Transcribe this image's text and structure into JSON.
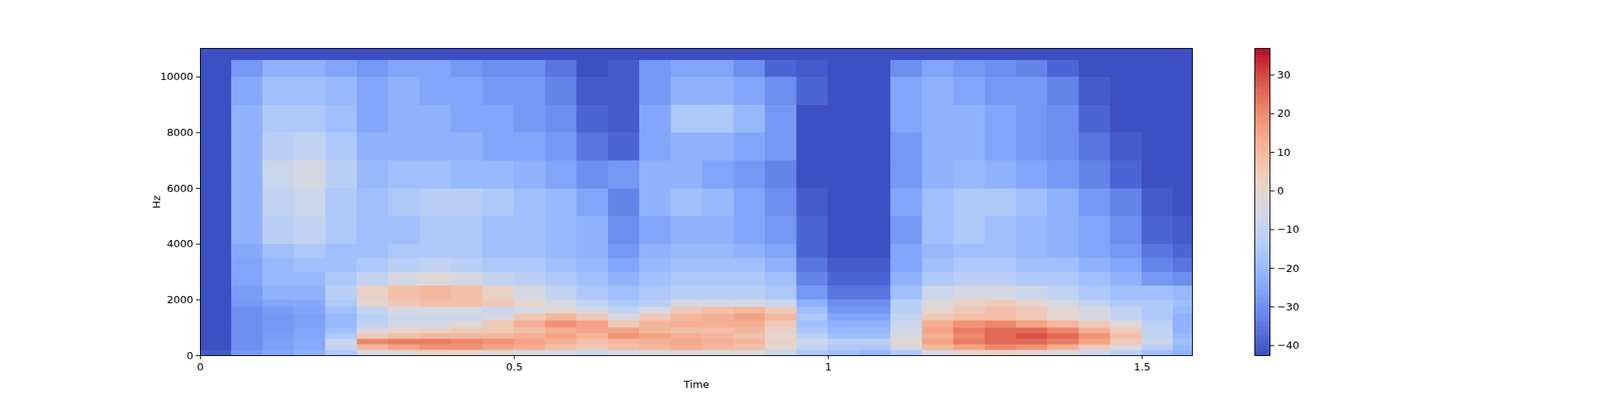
{
  "chart_data": {
    "type": "heatmap",
    "x_label": "Time",
    "y_label": "Hz",
    "xlim": [
      0,
      1.58
    ],
    "ylim": [
      0,
      11025
    ],
    "xticks": [
      0,
      0.5,
      1,
      1.5
    ],
    "yticks": [
      0,
      2000,
      4000,
      6000,
      8000,
      10000
    ],
    "color": "coolwarm",
    "colorbar": {
      "range": [
        -42.6,
        36.9
      ],
      "ticks": [
        {
          "value": -40,
          "label": "−40"
        },
        {
          "value": -30,
          "label": "−30"
        },
        {
          "value": -20,
          "label": "−20"
        },
        {
          "value": -10,
          "label": "−10"
        },
        0,
        10,
        20,
        30
      ]
    },
    "time_bins": [
      0,
      0.05,
      0.1,
      0.15,
      0.2,
      0.25,
      0.3,
      0.35,
      0.4,
      0.45,
      0.5,
      0.55,
      0.6,
      0.65,
      0.7,
      0.75,
      0.8,
      0.85,
      0.9,
      0.95,
      1.0,
      1.05,
      1.1,
      1.15,
      1.2,
      1.25,
      1.3,
      1.35,
      1.4,
      1.45,
      1.5,
      1.55,
      1.58
    ],
    "freq_bins": [
      0,
      200,
      400,
      600,
      800,
      1000,
      1250,
      1500,
      1750,
      2000,
      2500,
      3000,
      3500,
      4000,
      5000,
      6000,
      7000,
      8000,
      9000,
      10000,
      10600,
      11025
    ],
    "values": [
      [
        -40,
        -28,
        -25,
        -22,
        -15,
        -5,
        -2,
        0,
        0,
        -2,
        -3,
        -5,
        -8,
        -5,
        -3,
        -2,
        -2,
        -4,
        -8,
        -15,
        -18,
        -20,
        -15,
        -5,
        0,
        2,
        0,
        -3,
        -8,
        -12,
        -18,
        -22
      ],
      [
        -42,
        -30,
        -26,
        -24,
        -10,
        10,
        15,
        18,
        18,
        15,
        12,
        8,
        5,
        8,
        10,
        12,
        10,
        8,
        0,
        -10,
        -15,
        -15,
        -5,
        10,
        15,
        20,
        18,
        12,
        5,
        -2,
        -12,
        -20
      ],
      [
        -42,
        -30,
        -26,
        -24,
        -8,
        20,
        22,
        22,
        20,
        18,
        15,
        12,
        8,
        10,
        12,
        14,
        12,
        10,
        2,
        -8,
        -12,
        -12,
        0,
        15,
        22,
        25,
        25,
        22,
        15,
        5,
        -8,
        -18
      ],
      [
        -42,
        -30,
        -27,
        -25,
        -15,
        5,
        8,
        10,
        10,
        10,
        12,
        15,
        10,
        18,
        15,
        12,
        10,
        8,
        0,
        -12,
        -18,
        -18,
        -5,
        12,
        20,
        25,
        28,
        25,
        18,
        8,
        -10,
        -20
      ],
      [
        -42,
        -30,
        -28,
        -25,
        -18,
        -5,
        0,
        2,
        5,
        5,
        8,
        12,
        15,
        15,
        10,
        8,
        8,
        10,
        2,
        -15,
        -20,
        -20,
        -5,
        15,
        22,
        25,
        25,
        20,
        12,
        5,
        -10,
        -22
      ],
      [
        -42,
        -30,
        -28,
        -26,
        -20,
        -10,
        -5,
        -5,
        -2,
        5,
        12,
        18,
        15,
        5,
        10,
        12,
        12,
        12,
        5,
        -18,
        -22,
        -22,
        -8,
        12,
        18,
        20,
        15,
        10,
        5,
        -2,
        -12,
        -22
      ],
      [
        -42,
        -30,
        -28,
        -26,
        -20,
        -12,
        -8,
        -8,
        -8,
        -5,
        5,
        10,
        5,
        -5,
        5,
        10,
        12,
        15,
        10,
        -15,
        -25,
        -25,
        -10,
        5,
        8,
        8,
        5,
        0,
        -5,
        -10,
        -15,
        -22
      ],
      [
        -42,
        -30,
        -27,
        -25,
        -18,
        -10,
        -5,
        -5,
        -5,
        -8,
        -5,
        0,
        -5,
        -10,
        -5,
        5,
        8,
        10,
        5,
        -18,
        -28,
        -28,
        -12,
        0,
        5,
        8,
        5,
        0,
        -5,
        -10,
        -15,
        -20
      ],
      [
        -42,
        -28,
        -25,
        -24,
        -15,
        0,
        5,
        8,
        8,
        5,
        0,
        -5,
        -10,
        -15,
        -12,
        -5,
        -5,
        -5,
        -8,
        -22,
        -30,
        -30,
        -12,
        -2,
        2,
        5,
        0,
        -5,
        -10,
        -15,
        -15,
        -18
      ],
      [
        -42,
        -27,
        -22,
        -22,
        -12,
        2,
        8,
        10,
        8,
        2,
        -5,
        -10,
        -15,
        -18,
        -15,
        -12,
        -12,
        -12,
        -15,
        -28,
        -35,
        -35,
        -18,
        -8,
        -5,
        -5,
        -8,
        -10,
        -15,
        -18,
        -18,
        -20
      ],
      [
        -42,
        -25,
        -20,
        -20,
        -15,
        -10,
        -5,
        -2,
        -5,
        -10,
        -12,
        -15,
        -18,
        -22,
        -18,
        -15,
        -15,
        -15,
        -18,
        -32,
        -38,
        -38,
        -22,
        -15,
        -12,
        -12,
        -15,
        -15,
        -18,
        -22,
        -28,
        -30
      ],
      [
        -42,
        -25,
        -20,
        -18,
        -18,
        -15,
        -12,
        -10,
        -12,
        -15,
        -15,
        -18,
        -20,
        -25,
        -20,
        -18,
        -18,
        -18,
        -22,
        -35,
        -40,
        -40,
        -25,
        -18,
        -15,
        -15,
        -18,
        -18,
        -22,
        -25,
        -32,
        -35
      ],
      [
        -42,
        -24,
        -18,
        -15,
        -18,
        -18,
        -15,
        -15,
        -15,
        -18,
        -18,
        -20,
        -22,
        -28,
        -22,
        -20,
        -20,
        -22,
        -25,
        -38,
        -42,
        -42,
        -25,
        -20,
        -18,
        -18,
        -20,
        -22,
        -25,
        -28,
        -35,
        -38
      ],
      [
        -42,
        -22,
        -12,
        -10,
        -15,
        -18,
        -18,
        -15,
        -15,
        -18,
        -18,
        -20,
        -22,
        -30,
        -25,
        -22,
        -22,
        -25,
        -28,
        -38,
        -42,
        -42,
        -28,
        -18,
        -15,
        -18,
        -20,
        -22,
        -25,
        -30,
        -38,
        -40
      ],
      [
        -42,
        -22,
        -10,
        -8,
        -15,
        -18,
        -15,
        -12,
        -12,
        -15,
        -18,
        -20,
        -25,
        -32,
        -22,
        -18,
        -20,
        -25,
        -30,
        -40,
        -42,
        -42,
        -25,
        -18,
        -15,
        -15,
        -18,
        -22,
        -28,
        -32,
        -40,
        -42
      ],
      [
        -42,
        -22,
        -8,
        -5,
        -12,
        -20,
        -18,
        -18,
        -20,
        -20,
        -22,
        -25,
        -30,
        -28,
        -22,
        -22,
        -25,
        -28,
        -32,
        -42,
        -42,
        -42,
        -28,
        -22,
        -20,
        -22,
        -25,
        -28,
        -32,
        -38,
        -42,
        -42
      ],
      [
        -42,
        -22,
        -12,
        -10,
        -15,
        -22,
        -22,
        -22,
        -22,
        -25,
        -25,
        -28,
        -35,
        -38,
        -25,
        -22,
        -22,
        -25,
        -28,
        -42,
        -42,
        -42,
        -28,
        -22,
        -22,
        -25,
        -28,
        -30,
        -35,
        -40,
        -42,
        -42
      ],
      [
        -42,
        -22,
        -15,
        -15,
        -18,
        -25,
        -22,
        -22,
        -25,
        -25,
        -28,
        -30,
        -38,
        -40,
        -25,
        -15,
        -15,
        -20,
        -28,
        -42,
        -42,
        -42,
        -25,
        -22,
        -22,
        -25,
        -28,
        -30,
        -38,
        -42,
        -42,
        -42
      ],
      [
        -42,
        -24,
        -18,
        -18,
        -20,
        -25,
        -22,
        -25,
        -25,
        -28,
        -28,
        -32,
        -40,
        -40,
        -28,
        -22,
        -22,
        -25,
        -30,
        -38,
        -42,
        -42,
        -25,
        -22,
        -25,
        -28,
        -28,
        -32,
        -40,
        -42,
        -42,
        -42
      ],
      [
        -42,
        -28,
        -22,
        -22,
        -25,
        -28,
        -25,
        -25,
        -28,
        -30,
        -30,
        -35,
        -42,
        -40,
        -28,
        -25,
        -25,
        -30,
        -38,
        -40,
        -42,
        -42,
        -30,
        -25,
        -28,
        -30,
        -32,
        -38,
        -42,
        -42,
        -42,
        -42
      ],
      [
        -42,
        -42,
        -42,
        -42,
        -42,
        -42,
        -42,
        -42,
        -42,
        -42,
        -42,
        -42,
        -42,
        -42,
        -42,
        -42,
        -42,
        -42,
        -42,
        -42,
        -42,
        -42,
        -42,
        -42,
        -42,
        -42,
        -42,
        -42,
        -42,
        -42,
        -42,
        -42
      ]
    ]
  }
}
